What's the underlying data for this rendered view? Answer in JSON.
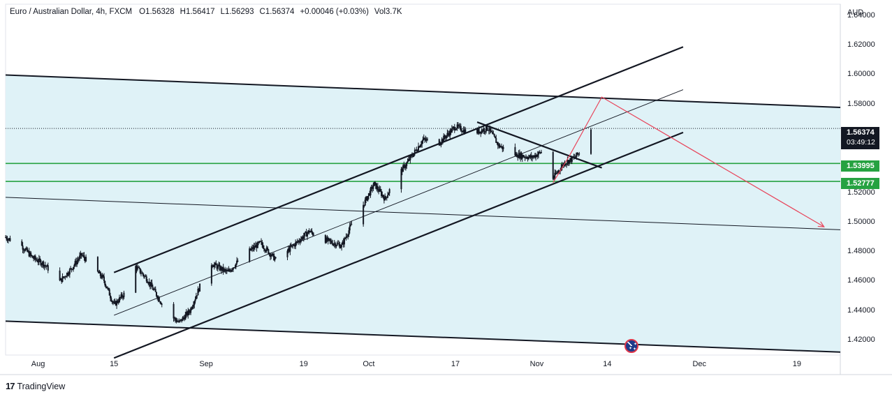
{
  "header": {
    "symbol": "Euro / Australian Dollar, 4h, FXCM",
    "open_label": "O",
    "open": "1.56328",
    "high_label": "H",
    "high": "1.56417",
    "low_label": "L",
    "low": "1.56293",
    "close_label": "C",
    "close": "1.56374",
    "change": "+0.00046 (+0.03%)",
    "volume": "Vol3.7K"
  },
  "y_axis": {
    "currency": "AUD",
    "ticks": [
      "1.64000",
      "1.62000",
      "1.60000",
      "1.58000",
      "1.52000",
      "1.50000",
      "1.48000",
      "1.46000",
      "1.44000",
      "1.42000"
    ]
  },
  "x_axis": {
    "ticks": [
      "Aug",
      "15",
      "Sep",
      "19",
      "Oct",
      "17",
      "Nov",
      "14",
      "Dec",
      "19"
    ]
  },
  "price_labels": {
    "last_price": "1.56374",
    "countdown": "03:49:12",
    "level_1": "1.53995",
    "level_2": "1.52777"
  },
  "branding": {
    "name": "TradingView",
    "logo": "17"
  },
  "colors": {
    "candle": "#131722",
    "channel_fill": "#dff2f7",
    "trendline": "#131722",
    "level_line": "#26a241",
    "projection": "#e8445a",
    "last_price_badge": "#131722",
    "change_text": "#089981"
  },
  "chart_data": {
    "type": "candlestick",
    "symbol": "EURAUD",
    "interval": "4h",
    "ylim": [
      1.41,
      1.648
    ],
    "x_range": [
      "2024-07-26",
      "2024-12-27"
    ],
    "close_path": [
      [
        "2024-07-26",
        1.49
      ],
      [
        "2024-07-29",
        1.484
      ],
      [
        "2024-07-31",
        1.476
      ],
      [
        "2024-08-02",
        1.472
      ],
      [
        "2024-08-05",
        1.46
      ],
      [
        "2024-08-07",
        1.468
      ],
      [
        "2024-08-09",
        1.478
      ],
      [
        "2024-08-11",
        1.47
      ],
      [
        "2024-08-13",
        1.462
      ],
      [
        "2024-08-15",
        1.444
      ],
      [
        "2024-08-17",
        1.452
      ],
      [
        "2024-08-19",
        1.47
      ],
      [
        "2024-08-21",
        1.462
      ],
      [
        "2024-08-23",
        1.45
      ],
      [
        "2024-08-25",
        1.438
      ],
      [
        "2024-08-27",
        1.432
      ],
      [
        "2024-08-29",
        1.44
      ],
      [
        "2024-08-31",
        1.458
      ],
      [
        "2024-09-02",
        1.472
      ],
      [
        "2024-09-05",
        1.466
      ],
      [
        "2024-09-08",
        1.478
      ],
      [
        "2024-09-11",
        1.486
      ],
      [
        "2024-09-14",
        1.474
      ],
      [
        "2024-09-17",
        1.484
      ],
      [
        "2024-09-20",
        1.494
      ],
      [
        "2024-09-23",
        1.488
      ],
      [
        "2024-09-26",
        1.484
      ],
      [
        "2024-09-28",
        1.5
      ],
      [
        "2024-09-30",
        1.512
      ],
      [
        "2024-10-02",
        1.526
      ],
      [
        "2024-10-04",
        1.516
      ],
      [
        "2024-10-06",
        1.53
      ],
      [
        "2024-10-08",
        1.54
      ],
      [
        "2024-10-11",
        1.556
      ],
      [
        "2024-10-14",
        1.554
      ],
      [
        "2024-10-17",
        1.565
      ],
      [
        "2024-10-20",
        1.56
      ],
      [
        "2024-10-23",
        1.564
      ],
      [
        "2024-10-25",
        1.552
      ],
      [
        "2024-10-28",
        1.546
      ],
      [
        "2024-10-31",
        1.544
      ],
      [
        "2024-11-02",
        1.548
      ],
      [
        "2024-11-04",
        1.53
      ],
      [
        "2024-11-06",
        1.54
      ],
      [
        "2024-11-08",
        1.544
      ],
      [
        "2024-11-10",
        1.552
      ],
      [
        "2024-11-11",
        1.5637
      ]
    ],
    "horizontal_levels": [
      1.53995,
      1.52777
    ],
    "last_price": 1.56374,
    "trendlines": [
      {
        "name": "ascending-channel-upper",
        "from": [
          "2024-08-15",
          1.466
        ],
        "to": [
          "2024-11-28",
          1.619
        ]
      },
      {
        "name": "ascending-channel-lower",
        "from": [
          "2024-08-15",
          1.408
        ],
        "to": [
          "2024-11-28",
          1.561
        ]
      },
      {
        "name": "ascending-channel-mid",
        "from": [
          "2024-08-15",
          1.437
        ],
        "to": [
          "2024-11-28",
          1.59
        ]
      },
      {
        "name": "wide-channel-upper",
        "from": [
          "2024-07-26",
          1.6
        ],
        "to": [
          "2024-12-27",
          1.578
        ]
      },
      {
        "name": "wide-channel-lower",
        "from": [
          "2024-07-26",
          1.433
        ],
        "to": [
          "2024-12-27",
          1.412
        ]
      },
      {
        "name": "wide-channel-mid",
        "from": [
          "2024-07-26",
          1.517
        ],
        "to": [
          "2024-12-27",
          1.495
        ]
      },
      {
        "name": "descending-resistance",
        "from": [
          "2024-10-21",
          1.568
        ],
        "to": [
          "2024-11-13",
          1.537
        ]
      }
    ],
    "projection_path": [
      [
        "2024-11-04",
        1.527
      ],
      [
        "2024-11-07",
        1.545
      ],
      [
        "2024-11-13",
        1.585
      ],
      [
        "2024-12-24",
        1.497
      ]
    ]
  }
}
